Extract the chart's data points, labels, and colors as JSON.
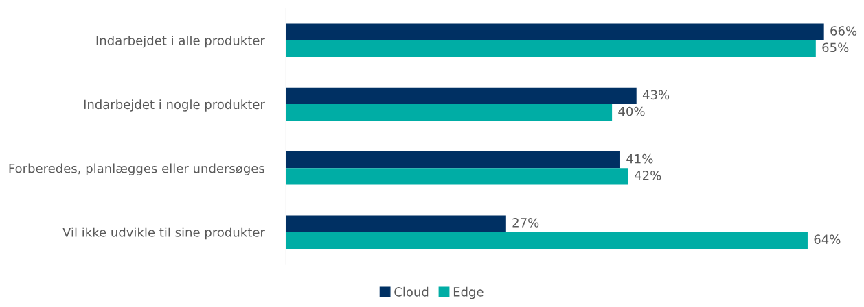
{
  "chart_data": {
    "type": "bar",
    "orientation": "horizontal",
    "categories": [
      "Indarbejdet i alle produkter",
      "Indarbejdet i nogle produkter",
      "Forberedes, planlægges eller undersøges",
      "Vil ikke udvikle til sine produkter"
    ],
    "series": [
      {
        "name": "Cloud",
        "color": "#003063",
        "values": [
          66,
          43,
          41,
          27
        ],
        "value_labels": [
          "66%",
          "43%",
          "41%",
          "27%"
        ]
      },
      {
        "name": "Edge",
        "color": "#00ada5",
        "values": [
          65,
          40,
          42,
          64
        ],
        "value_labels": [
          "65%",
          "40%",
          "42%",
          "64%"
        ]
      }
    ],
    "legend": "bottom",
    "grid": false
  }
}
